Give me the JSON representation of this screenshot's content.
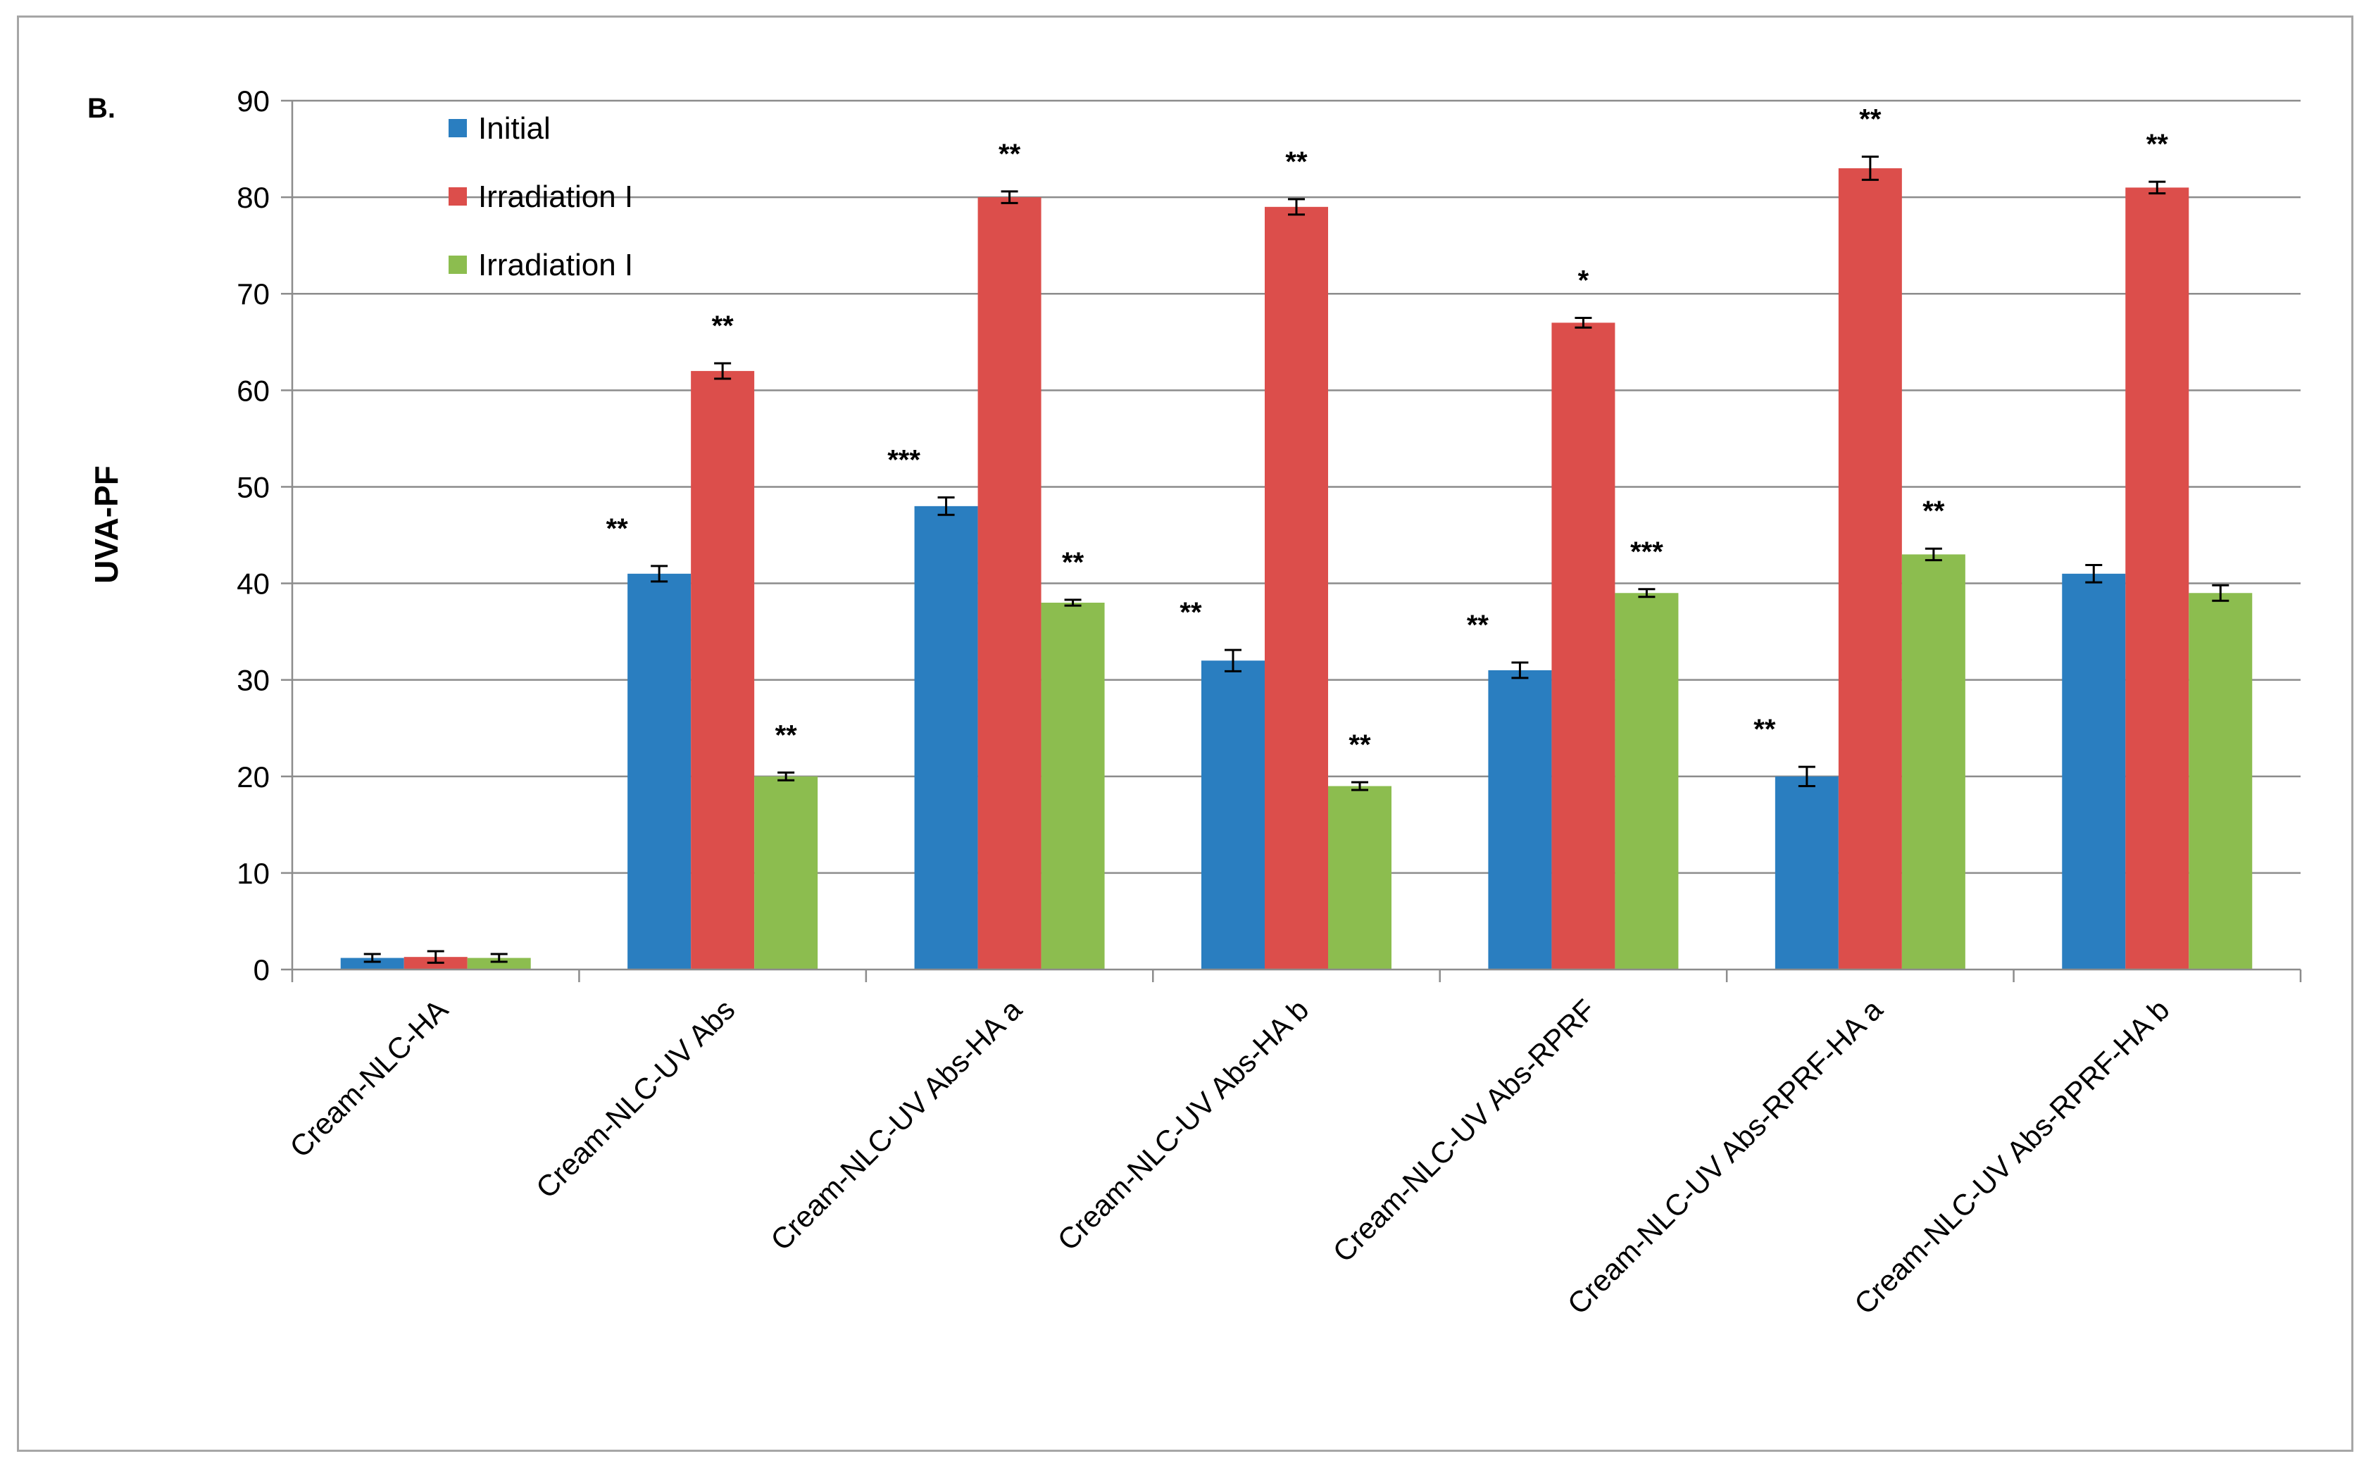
{
  "chart_data": {
    "type": "bar",
    "panel_label": "B.",
    "title": "",
    "xlabel": "",
    "ylabel": "UVA-PF",
    "ylim": [
      0,
      90
    ],
    "yticks": [
      0,
      10,
      20,
      30,
      40,
      50,
      60,
      70,
      80,
      90
    ],
    "grid": true,
    "legend_position": "top-left",
    "categories": [
      "Cream-NLC-HA",
      "Cream-NLC-UV Abs",
      "Cream-NLC-UV Abs-HA a",
      "Cream-NLC-UV Abs-HA b",
      "Cream-NLC-UV Abs-RPRF",
      "Cream-NLC-UV Abs-RPRF-HA a",
      "Cream-NLC-UV Abs-RPRF-HA b"
    ],
    "series": [
      {
        "name": "Initial",
        "color": "#2a7ec0",
        "values": [
          1.2,
          41,
          48,
          32,
          31,
          20,
          41
        ],
        "errors": [
          0.4,
          0.8,
          0.9,
          1.1,
          0.8,
          1.0,
          0.9
        ],
        "significance": [
          "",
          "**",
          "***",
          "**",
          "**",
          "**",
          ""
        ]
      },
      {
        "name": "Irradiation I",
        "color": "#dc4e4b",
        "values": [
          1.3,
          62,
          80,
          79,
          67,
          83,
          81
        ],
        "errors": [
          0.6,
          0.8,
          0.6,
          0.8,
          0.5,
          1.2,
          0.6
        ],
        "significance": [
          "",
          "**",
          "**",
          "**",
          "*",
          "**",
          "**"
        ]
      },
      {
        "name": "Irradiation I",
        "color": "#8cbd4f",
        "values": [
          1.2,
          20,
          38,
          19,
          39,
          43,
          39
        ],
        "errors": [
          0.4,
          0.4,
          0.3,
          0.4,
          0.4,
          0.6,
          0.8
        ],
        "significance": [
          "",
          "**",
          "**",
          "**",
          "***",
          "**",
          ""
        ]
      }
    ]
  },
  "colors": {
    "grid": "#8c8c8c",
    "axis": "#8c8c8c",
    "frame": "#a6a6a6"
  }
}
